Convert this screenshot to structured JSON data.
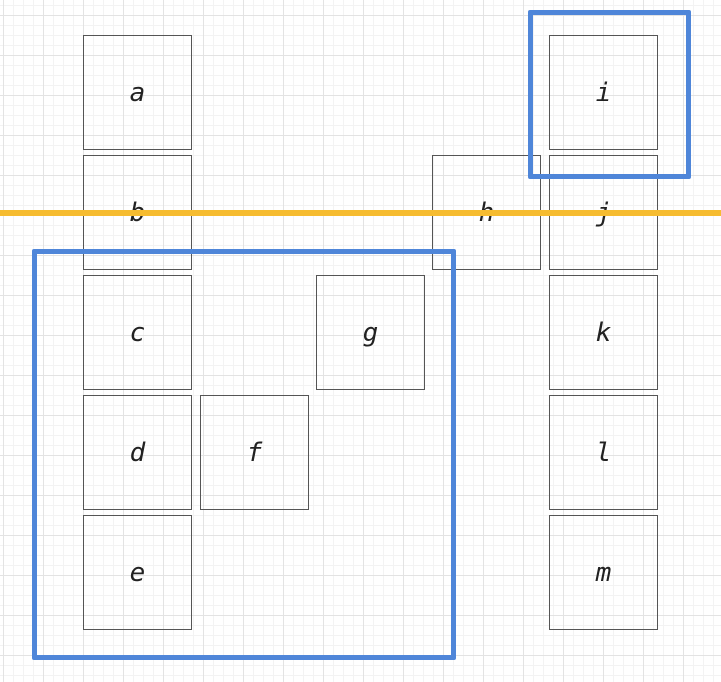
{
  "canvas": {
    "guide_color": "#f6bc30",
    "selection_color": "#4f86d9",
    "grid_visible": true
  },
  "nodes": {
    "a": "a",
    "b": "b",
    "c": "c",
    "d": "d",
    "e": "e",
    "f": "f",
    "g": "g",
    "h": "h",
    "i": "i",
    "j": "j",
    "k": "k",
    "l": "l",
    "m": "m"
  }
}
